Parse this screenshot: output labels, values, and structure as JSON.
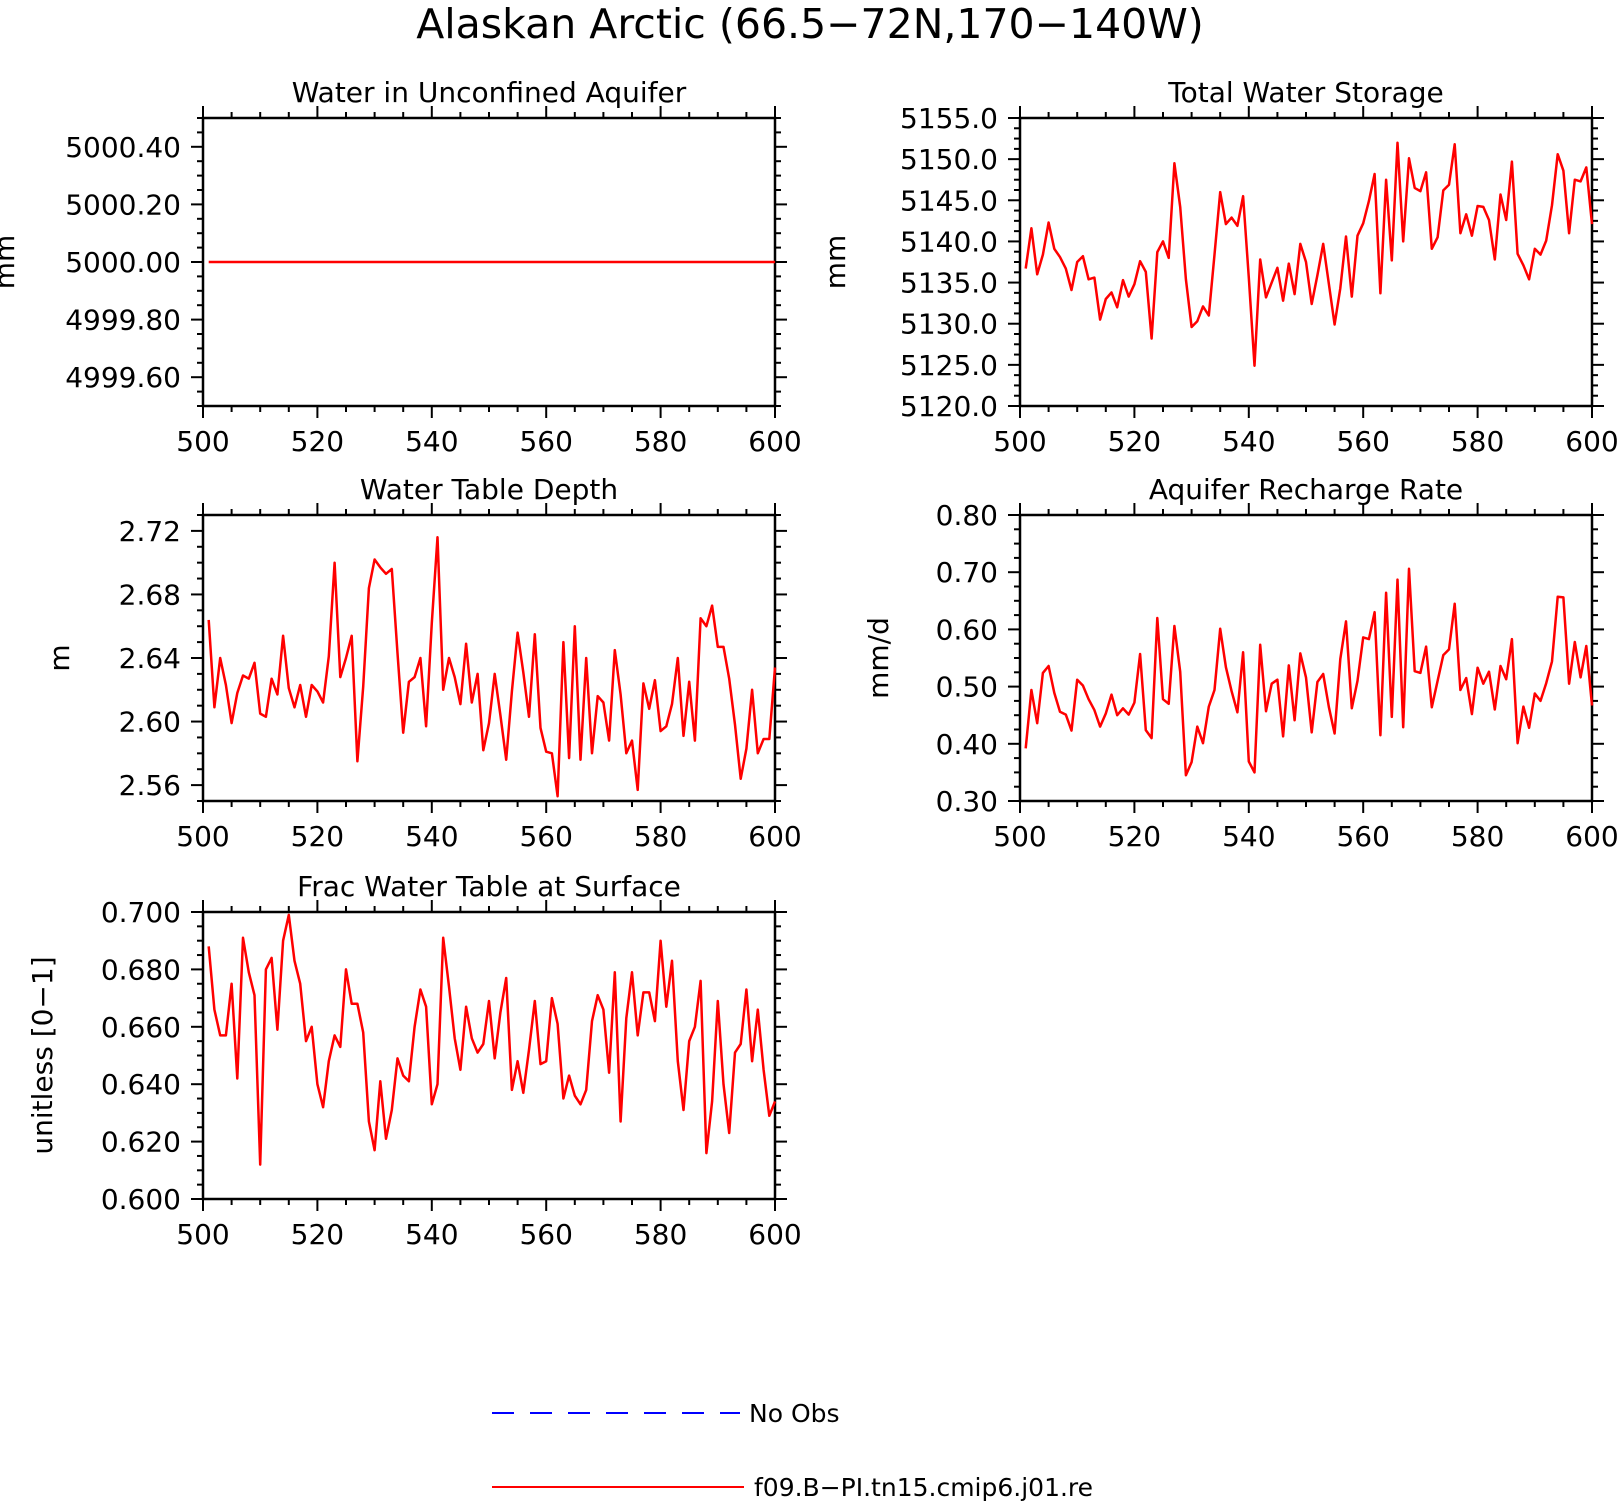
{
  "figure": {
    "title": "Alaskan Arctic (66.5−72N,170−140W)"
  },
  "legend": {
    "placement": "bottom-center",
    "entries": [
      {
        "label": "No Obs",
        "color": "#0000ff",
        "style": "dashed"
      },
      {
        "label": "f09.B−PI.tn15.cmip6.j01.re",
        "color": "#ff0000",
        "style": "solid"
      }
    ]
  },
  "chart_data": [
    {
      "type": "line",
      "title": "Water in Unconfined Aquifer",
      "xlabel": "",
      "ylabel": "mm",
      "xlim": [
        500,
        600
      ],
      "ylim": [
        4999.5,
        5000.5
      ],
      "xticks": [
        "500",
        "520",
        "540",
        "560",
        "580",
        "600"
      ],
      "yticks": [
        "4999.60",
        "4999.80",
        "5000.00",
        "5000.20",
        "5000.40"
      ],
      "ytick_values": [
        4999.6,
        4999.8,
        5000.0,
        5000.2,
        5000.4
      ],
      "series": [
        {
          "color": "#ff0000",
          "x": [
            501,
            600
          ],
          "y": [
            5000.0,
            5000.0
          ]
        }
      ]
    },
    {
      "type": "line",
      "title": "Total Water Storage",
      "xlabel": "",
      "ylabel": "mm",
      "xlim": [
        500,
        600
      ],
      "ylim": [
        5120,
        5155
      ],
      "xticks": [
        "500",
        "520",
        "540",
        "560",
        "580",
        "600"
      ],
      "yticks": [
        "5120.0",
        "5125.0",
        "5130.0",
        "5135.0",
        "5140.0",
        "5145.0",
        "5150.0",
        "5155.0"
      ],
      "ytick_values": [
        5120,
        5125,
        5130,
        5135,
        5140,
        5145,
        5150,
        5155
      ],
      "series": [
        {
          "color": "#ff0000",
          "x_start": 501,
          "y": [
            5136.7,
            5141.6,
            5136.0,
            5138.4,
            5142.3,
            5139.1,
            5138.1,
            5136.7,
            5134.1,
            5137.5,
            5138.2,
            5135.4,
            5135.6,
            5130.5,
            5133.0,
            5133.8,
            5132.0,
            5135.3,
            5133.3,
            5134.8,
            5137.6,
            5136.3,
            5128.2,
            5138.7,
            5140.0,
            5138.0,
            5149.5,
            5144.2,
            5135.4,
            5129.6,
            5130.3,
            5132.1,
            5131.0,
            5138.4,
            5146.0,
            5142.1,
            5142.9,
            5141.9,
            5145.5,
            5135.6,
            5124.9,
            5137.8,
            5133.2,
            5135.0,
            5136.8,
            5132.8,
            5137.3,
            5133.6,
            5139.7,
            5137.5,
            5132.4,
            5135.9,
            5139.7,
            5134.8,
            5129.9,
            5134.3,
            5140.6,
            5133.3,
            5140.7,
            5142.2,
            5144.9,
            5148.2,
            5133.7,
            5147.5,
            5137.7,
            5152.0,
            5140.0,
            5150.1,
            5146.5,
            5146.1,
            5148.4,
            5139.1,
            5140.5,
            5146.2,
            5146.9,
            5151.8,
            5141.0,
            5143.3,
            5140.7,
            5144.3,
            5144.2,
            5142.6,
            5137.8,
            5145.7,
            5142.6,
            5149.7,
            5138.5,
            5137.1,
            5135.4,
            5139.1,
            5138.4,
            5140.1,
            5144.4,
            5150.6,
            5148.6,
            5141.0,
            5147.5,
            5147.3,
            5149.0,
            5142.1
          ]
        }
      ]
    },
    {
      "type": "line",
      "title": "Water Table Depth",
      "xlabel": "",
      "ylabel": "m",
      "xlim": [
        500,
        600
      ],
      "ylim": [
        2.55,
        2.73
      ],
      "xticks": [
        "500",
        "520",
        "540",
        "560",
        "580",
        "600"
      ],
      "yticks": [
        "2.56",
        "2.60",
        "2.64",
        "2.68",
        "2.72"
      ],
      "ytick_values": [
        2.56,
        2.6,
        2.64,
        2.68,
        2.72
      ],
      "series": [
        {
          "color": "#ff0000",
          "x_start": 501,
          "y": [
            2.664,
            2.609,
            2.64,
            2.623,
            2.599,
            2.618,
            2.629,
            2.627,
            2.637,
            2.605,
            2.603,
            2.627,
            2.617,
            2.654,
            2.621,
            2.609,
            2.623,
            2.603,
            2.623,
            2.619,
            2.612,
            2.641,
            2.7,
            2.628,
            2.64,
            2.654,
            2.575,
            2.622,
            2.684,
            2.702,
            2.697,
            2.693,
            2.696,
            2.643,
            2.593,
            2.625,
            2.628,
            2.64,
            2.597,
            2.662,
            2.716,
            2.62,
            2.64,
            2.628,
            2.611,
            2.649,
            2.612,
            2.63,
            2.582,
            2.599,
            2.63,
            2.604,
            2.576,
            2.619,
            2.656,
            2.631,
            2.603,
            2.655,
            2.596,
            2.581,
            2.58,
            2.553,
            2.65,
            2.577,
            2.66,
            2.576,
            2.64,
            2.58,
            2.616,
            2.612,
            2.588,
            2.645,
            2.617,
            2.58,
            2.588,
            2.557,
            2.624,
            2.608,
            2.626,
            2.594,
            2.597,
            2.611,
            2.64,
            2.591,
            2.625,
            2.588,
            2.665,
            2.66,
            2.673,
            2.647,
            2.647,
            2.627,
            2.598,
            2.564,
            2.583,
            2.62,
            2.58,
            2.589,
            2.589,
            2.634
          ]
        }
      ]
    },
    {
      "type": "line",
      "title": "Aquifer Recharge Rate",
      "xlabel": "",
      "ylabel": "mm/d",
      "xlim": [
        500,
        600
      ],
      "ylim": [
        0.3,
        0.8
      ],
      "xticks": [
        "500",
        "520",
        "540",
        "560",
        "580",
        "600"
      ],
      "yticks": [
        "0.30",
        "0.40",
        "0.50",
        "0.60",
        "0.70",
        "0.80"
      ],
      "ytick_values": [
        0.3,
        0.4,
        0.5,
        0.6,
        0.7,
        0.8
      ],
      "series": [
        {
          "color": "#ff0000",
          "x_start": 501,
          "y": [
            0.392,
            0.494,
            0.436,
            0.524,
            0.536,
            0.489,
            0.456,
            0.451,
            0.423,
            0.512,
            0.502,
            0.478,
            0.459,
            0.43,
            0.453,
            0.486,
            0.45,
            0.462,
            0.451,
            0.472,
            0.557,
            0.424,
            0.41,
            0.62,
            0.478,
            0.47,
            0.606,
            0.526,
            0.345,
            0.368,
            0.43,
            0.401,
            0.465,
            0.494,
            0.601,
            0.534,
            0.492,
            0.455,
            0.56,
            0.369,
            0.35,
            0.573,
            0.457,
            0.505,
            0.512,
            0.413,
            0.537,
            0.441,
            0.558,
            0.516,
            0.42,
            0.508,
            0.522,
            0.464,
            0.418,
            0.548,
            0.614,
            0.462,
            0.51,
            0.586,
            0.583,
            0.63,
            0.415,
            0.664,
            0.447,
            0.687,
            0.429,
            0.706,
            0.527,
            0.524,
            0.57,
            0.464,
            0.51,
            0.555,
            0.565,
            0.645,
            0.494,
            0.515,
            0.452,
            0.533,
            0.505,
            0.526,
            0.46,
            0.536,
            0.513,
            0.583,
            0.401,
            0.465,
            0.428,
            0.488,
            0.475,
            0.506,
            0.544,
            0.657,
            0.656,
            0.505,
            0.578,
            0.516,
            0.571,
            0.467
          ]
        }
      ]
    },
    {
      "type": "line",
      "title": "Frac Water Table at Surface",
      "xlabel": "",
      "ylabel": "unitless [0−1]",
      "xlim": [
        500,
        600
      ],
      "ylim": [
        0.6,
        0.7
      ],
      "xticks": [
        "500",
        "520",
        "540",
        "560",
        "580",
        "600"
      ],
      "yticks": [
        "0.600",
        "0.620",
        "0.640",
        "0.660",
        "0.680",
        "0.700"
      ],
      "ytick_values": [
        0.6,
        0.62,
        0.64,
        0.66,
        0.68,
        0.7
      ],
      "series": [
        {
          "color": "#ff0000",
          "x_start": 501,
          "y": [
            0.688,
            0.666,
            0.657,
            0.657,
            0.675,
            0.642,
            0.691,
            0.679,
            0.671,
            0.612,
            0.68,
            0.684,
            0.659,
            0.69,
            0.699,
            0.683,
            0.675,
            0.655,
            0.66,
            0.64,
            0.632,
            0.648,
            0.657,
            0.653,
            0.68,
            0.668,
            0.668,
            0.658,
            0.627,
            0.617,
            0.641,
            0.621,
            0.631,
            0.649,
            0.643,
            0.641,
            0.66,
            0.673,
            0.667,
            0.633,
            0.64,
            0.691,
            0.674,
            0.656,
            0.645,
            0.667,
            0.656,
            0.651,
            0.654,
            0.669,
            0.649,
            0.665,
            0.677,
            0.638,
            0.648,
            0.637,
            0.652,
            0.669,
            0.647,
            0.648,
            0.67,
            0.661,
            0.635,
            0.643,
            0.636,
            0.633,
            0.638,
            0.662,
            0.671,
            0.666,
            0.644,
            0.679,
            0.627,
            0.663,
            0.679,
            0.657,
            0.672,
            0.672,
            0.662,
            0.69,
            0.667,
            0.683,
            0.648,
            0.631,
            0.655,
            0.66,
            0.676,
            0.616,
            0.634,
            0.669,
            0.64,
            0.623,
            0.651,
            0.654,
            0.673,
            0.648,
            0.666,
            0.645,
            0.629,
            0.634
          ]
        }
      ]
    }
  ]
}
